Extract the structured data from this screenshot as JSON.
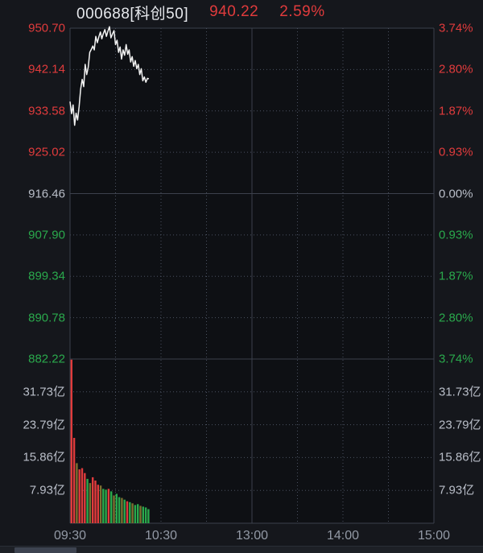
{
  "header": {
    "symbol": "000688[科创50]",
    "price": "940.22",
    "change_pct": "2.59%"
  },
  "colors": {
    "up": "#e03b3c",
    "down": "#2aa94c",
    "flat": "#b9bec8",
    "mixed": "#7d7030",
    "line": "#f2f2f2",
    "grid_solid": "#3c414c",
    "grid_dotted": "#4a5160",
    "time_text": "#939aa6"
  },
  "chart_data": {
    "type": "line",
    "title": "000688[科创50] intraday",
    "prev_close": 916.46,
    "last_price": 940.22,
    "change_pct": 2.59,
    "price_axis": {
      "min": 882.22,
      "max": 950.7,
      "labels": [
        {
          "text": "950.70",
          "tone": "up"
        },
        {
          "text": "942.14",
          "tone": "up"
        },
        {
          "text": "933.58",
          "tone": "up"
        },
        {
          "text": "925.02",
          "tone": "up"
        },
        {
          "text": "916.46",
          "tone": "flat"
        },
        {
          "text": "907.90",
          "tone": "down"
        },
        {
          "text": "899.34",
          "tone": "down"
        },
        {
          "text": "890.78",
          "tone": "down"
        },
        {
          "text": "882.22",
          "tone": "down"
        }
      ]
    },
    "pct_axis": {
      "labels": [
        {
          "text": "3.74%",
          "tone": "up"
        },
        {
          "text": "2.80%",
          "tone": "up"
        },
        {
          "text": "1.87%",
          "tone": "up"
        },
        {
          "text": "0.93%",
          "tone": "up"
        },
        {
          "text": "0.00%",
          "tone": "flat"
        },
        {
          "text": "0.93%",
          "tone": "down"
        },
        {
          "text": "1.87%",
          "tone": "down"
        },
        {
          "text": "2.80%",
          "tone": "down"
        },
        {
          "text": "3.74%",
          "tone": "down"
        }
      ]
    },
    "volume_axis": {
      "unit": "亿",
      "max": 39.65,
      "labels": [
        "31.73亿",
        "23.79亿",
        "15.86亿",
        "7.93亿"
      ]
    },
    "time_axis": {
      "total_minutes": 240,
      "labels": [
        {
          "text": "09:30",
          "minute": 0
        },
        {
          "text": "10:30",
          "minute": 60
        },
        {
          "text": "13:00",
          "minute": 120
        },
        {
          "text": "14:00",
          "minute": 180
        },
        {
          "text": "15:00",
          "minute": 240
        }
      ],
      "grid_dotted_minutes": [
        30,
        60,
        90,
        150,
        180,
        210
      ],
      "grid_solid_minutes": [
        120
      ]
    },
    "price_series": {
      "x_minutes": [
        0,
        1,
        2,
        3,
        4,
        5,
        6,
        7,
        8,
        9,
        10,
        11,
        12,
        13,
        14,
        15,
        16,
        17,
        18,
        19,
        20,
        21,
        22,
        23,
        24,
        25,
        26,
        27,
        28,
        29,
        30,
        31,
        32,
        33,
        34,
        35,
        36,
        37,
        38,
        39,
        40,
        41,
        42,
        43,
        44,
        45,
        46,
        47,
        48,
        49,
        50,
        51,
        52
      ],
      "values": [
        935.5,
        933.0,
        934.8,
        930.6,
        933.1,
        931.7,
        934.5,
        938.1,
        940.1,
        938.6,
        943.2,
        941.1,
        942.6,
        945.7,
        946.3,
        947.0,
        946.2,
        949.0,
        947.7,
        948.9,
        949.9,
        948.5,
        949.6,
        950.4,
        949.0,
        950.1,
        951.0,
        948.7,
        949.5,
        950.2,
        947.3,
        948.2,
        945.7,
        946.8,
        944.3,
        946.2,
        945.1,
        947.3,
        945.3,
        946.2,
        943.7,
        944.8,
        942.8,
        944.0,
        942.3,
        943.2,
        941.1,
        942.3,
        939.8,
        940.6,
        939.5,
        940.3,
        940.22
      ]
    },
    "volume_series": {
      "unit": "亿",
      "bar_minutes": [
        0,
        1.75,
        3.5,
        5.25,
        7,
        8.75,
        10.5,
        12.25,
        14,
        15.75,
        17.5,
        19.25,
        21,
        22.75,
        24.5,
        26.25,
        28,
        29.75,
        31.5,
        33.25,
        35,
        36.75,
        38.5,
        40.25,
        42,
        43.75,
        45.5,
        47.25,
        49,
        50.75
      ],
      "values": [
        39.5,
        20.6,
        14.5,
        13.0,
        13.3,
        12.1,
        10.7,
        9.7,
        11.1,
        10.3,
        9.3,
        9.1,
        8.3,
        8.1,
        8.3,
        7.7,
        6.7,
        7.1,
        6.3,
        6.1,
        5.7,
        5.3,
        5.1,
        4.8,
        4.4,
        4.6,
        4.2,
        4.0,
        3.8,
        3.4
      ],
      "tones": [
        "up",
        "up",
        "mixed",
        "up",
        "up",
        "up",
        "down",
        "mixed",
        "up",
        "up",
        "up",
        "mixed",
        "down",
        "down",
        "up",
        "down",
        "mixed",
        "down",
        "down",
        "mixed",
        "down",
        "up",
        "down",
        "mixed",
        "down",
        "down",
        "mixed",
        "down",
        "down",
        "down"
      ]
    }
  }
}
